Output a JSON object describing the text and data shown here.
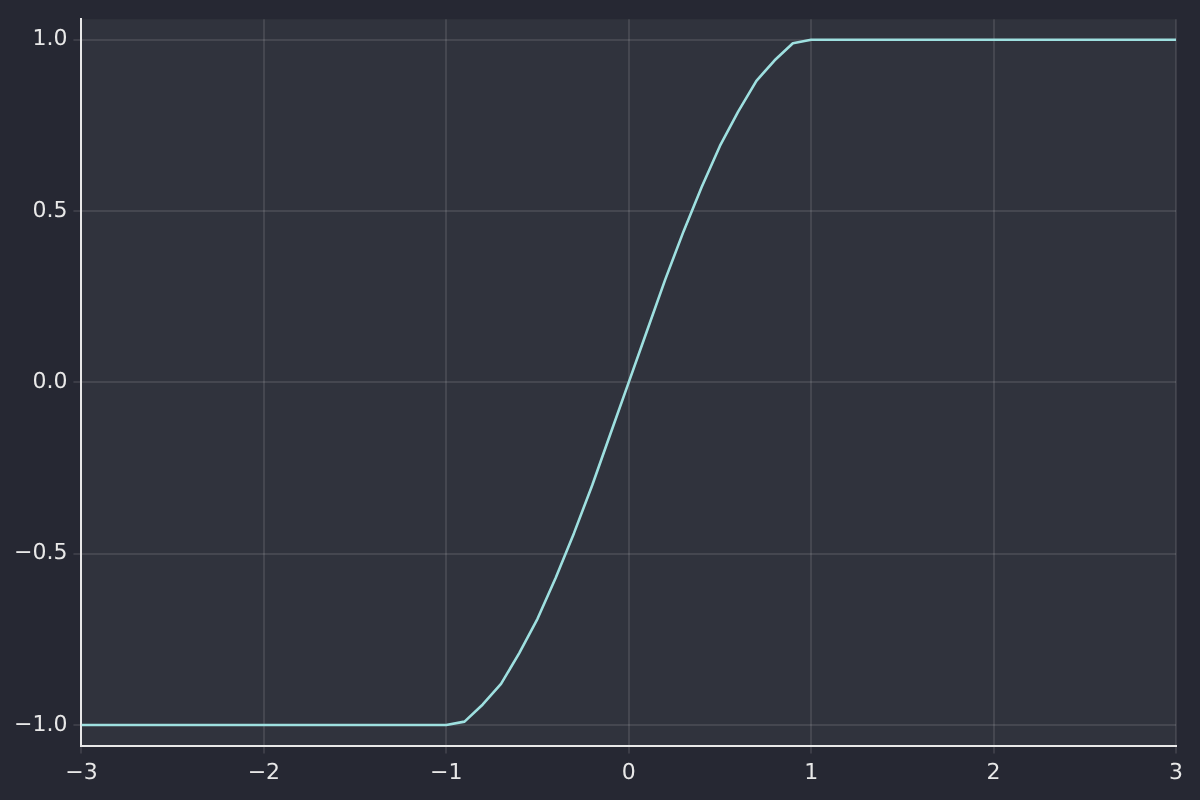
{
  "chart_data": {
    "type": "line",
    "xlim": [
      -3,
      3
    ],
    "ylim": [
      -1.06,
      1.06
    ],
    "xticks": [
      {
        "value": -3,
        "label": "−3"
      },
      {
        "value": -2,
        "label": "−2"
      },
      {
        "value": -1,
        "label": "−1"
      },
      0,
      1,
      2,
      3
    ],
    "yticks": [
      {
        "value": -1,
        "label": "−1.0"
      },
      {
        "value": -0.5,
        "label": "−0.5"
      },
      {
        "value": 0,
        "label": "0.0"
      },
      {
        "value": 0.5,
        "label": "0.5"
      },
      {
        "value": 1,
        "label": "1.0"
      }
    ],
    "grid": true,
    "marker": "none",
    "series": [
      {
        "color": "#9ee0e0",
        "x": [
          -3,
          -2,
          -1,
          -0.9,
          -0.8,
          -0.7,
          -0.6,
          -0.5,
          -0.4,
          -0.3,
          -0.2,
          -0.1,
          0,
          0.1,
          0.2,
          0.3,
          0.4,
          0.5,
          0.6,
          0.7,
          0.8,
          0.9,
          1,
          2,
          3
        ],
        "values": [
          -1,
          -1,
          -1,
          -0.99,
          -0.94,
          -0.88,
          -0.79,
          -0.69,
          -0.57,
          -0.44,
          -0.3,
          -0.15,
          0,
          0.15,
          0.3,
          0.44,
          0.57,
          0.69,
          0.79,
          0.88,
          0.94,
          0.99,
          1,
          1,
          1
        ]
      }
    ]
  }
}
